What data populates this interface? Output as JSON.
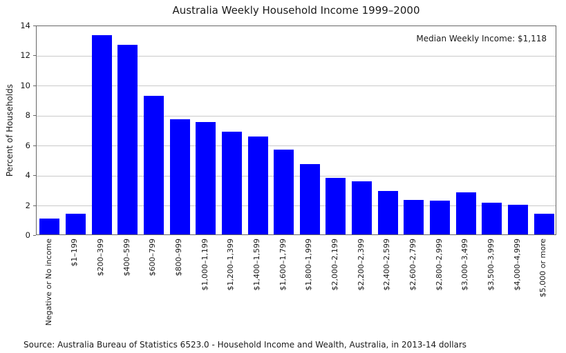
{
  "chart_data": {
    "type": "bar",
    "title": "Australia Weekly Household Income 1999–2000",
    "xlabel": "",
    "ylabel": "Percent of Households",
    "ylim": [
      0,
      14
    ],
    "yticks": [
      0,
      2,
      4,
      6,
      8,
      10,
      12,
      14
    ],
    "grid": "horizontal",
    "legend": "none",
    "annotation": "Median Weekly Income: $1,118",
    "bar_color": "#0000ff",
    "categories": [
      "Negative or No income",
      "$1–199",
      "$200–399",
      "$400–599",
      "$600–799",
      "$800–999",
      "$1,000–1,199",
      "$1,200–1,399",
      "$1,400–1,599",
      "$1,600–1,799",
      "$1,800–1,999",
      "$2,000–2,199",
      "$2,200–2,399",
      "$2,400–2,599",
      "$2,600–2,799",
      "$2,800–2,999",
      "$3,000–3,499",
      "$3,500–3,999",
      "$4,000–4,999",
      "$5,000 or more"
    ],
    "values": [
      1.05,
      1.4,
      13.3,
      12.65,
      9.25,
      7.7,
      7.5,
      6.85,
      6.55,
      5.65,
      4.7,
      3.8,
      3.55,
      2.9,
      2.3,
      2.25,
      2.8,
      2.1,
      2.0,
      1.4
    ],
    "source": "Source: Australia Bureau of Statistics 6523.0 - Household Income and Wealth, Australia, in 2013-14 dollars"
  },
  "colors": {
    "bar": "#0000ff",
    "grid": "#c9c9c9",
    "spine": "#666666",
    "text": "#1a1a1a"
  }
}
